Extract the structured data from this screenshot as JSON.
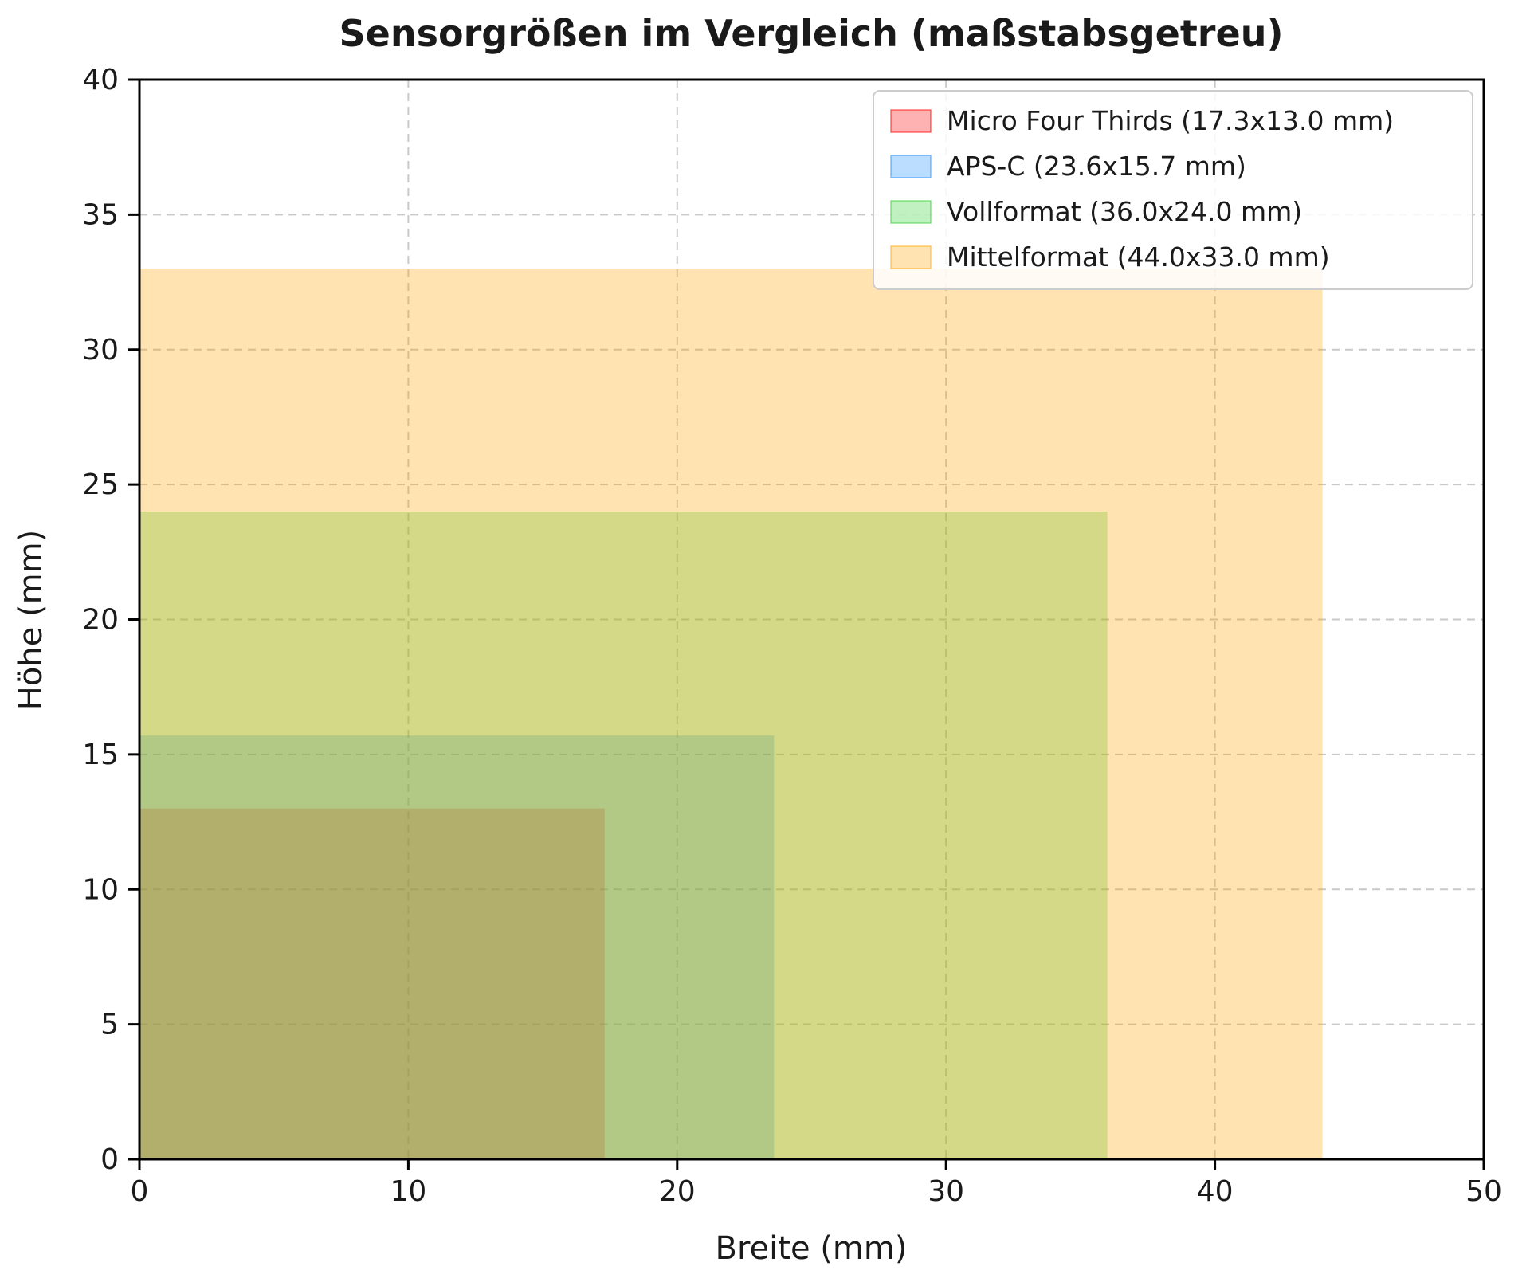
{
  "chart_data": {
    "type": "bar",
    "subtype": "overlapping-rectangles-to-scale",
    "title": "Sensorgrößen im Vergleich (maßstabsgetreu)",
    "xlabel": "Breite (mm)",
    "ylabel": "Höhe (mm)",
    "xlim": [
      0,
      50
    ],
    "ylim": [
      0,
      40
    ],
    "xticks": [
      0,
      10,
      20,
      30,
      40,
      50
    ],
    "yticks": [
      0,
      5,
      10,
      15,
      20,
      25,
      30,
      35,
      40
    ],
    "grid": true,
    "grid_style": "dashed",
    "legend_position": "upper right",
    "fill_alpha": 0.3,
    "series": [
      {
        "name": "Micro Four Thirds",
        "label": "Micro Four Thirds (17.3x13.0 mm)",
        "width_mm": 17.3,
        "height_mm": 13.0,
        "color": "#ff0000"
      },
      {
        "name": "APS-C",
        "label": "APS-C (23.6x15.7 mm)",
        "width_mm": 23.6,
        "height_mm": 15.7,
        "color": "#1e90ff"
      },
      {
        "name": "Vollformat",
        "label": "Vollformat (36.0x24.0 mm)",
        "width_mm": 36.0,
        "height_mm": 24.0,
        "color": "#32cd32"
      },
      {
        "name": "Mittelformat",
        "label": "Mittelformat (44.0x33.0 mm)",
        "width_mm": 44.0,
        "height_mm": 33.0,
        "color": "#ffa500"
      }
    ]
  }
}
